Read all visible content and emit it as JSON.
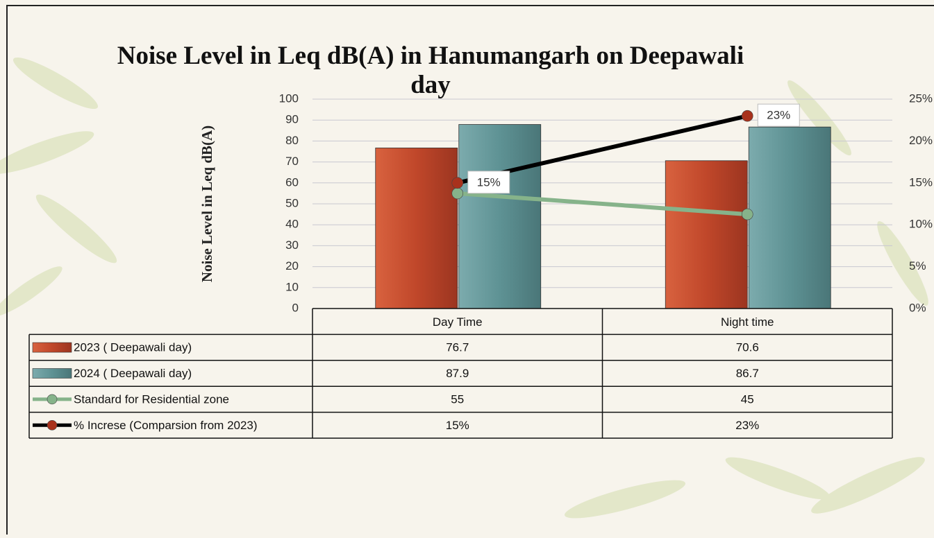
{
  "chart_data": {
    "type": "bar-line",
    "title": "Noise Level in Leq dB(A) in Hanumangarh on Deepawali day",
    "y_label": "Noise Level in Leq dB(A)",
    "categories": [
      "Day Time",
      "Night time"
    ],
    "series": [
      {
        "name": "2023 ( Deepawali day)",
        "type": "bar",
        "color": "#c0472a",
        "values": [
          76.7,
          70.6
        ]
      },
      {
        "name": "2024 ( Deepawali day)",
        "type": "bar",
        "color": "#5e9294",
        "values": [
          87.9,
          86.7
        ]
      },
      {
        "name": "Standard for Residential zone",
        "type": "line",
        "color": "#86b38a",
        "values": [
          55,
          45
        ]
      },
      {
        "name": "% Increse (Comparsion from 2023)",
        "type": "line",
        "color": "#000000",
        "marker_color": "#a8321c",
        "axis": "y2",
        "values": [
          15,
          23
        ],
        "value_labels": [
          "15%",
          "23%"
        ]
      }
    ],
    "ylim": [
      0,
      100
    ],
    "yticks": [
      0,
      10,
      20,
      30,
      40,
      50,
      60,
      70,
      80,
      90,
      100
    ],
    "y2lim": [
      0,
      25
    ],
    "y2ticks": [
      {
        "value": 0,
        "label": "0%"
      },
      {
        "value": 5,
        "label": "5%"
      },
      {
        "value": 10,
        "label": "10%"
      },
      {
        "value": 15,
        "label": "15%"
      },
      {
        "value": 20,
        "label": "20%"
      },
      {
        "value": 25,
        "label": "25%"
      }
    ],
    "grid": true,
    "data_table": true
  }
}
